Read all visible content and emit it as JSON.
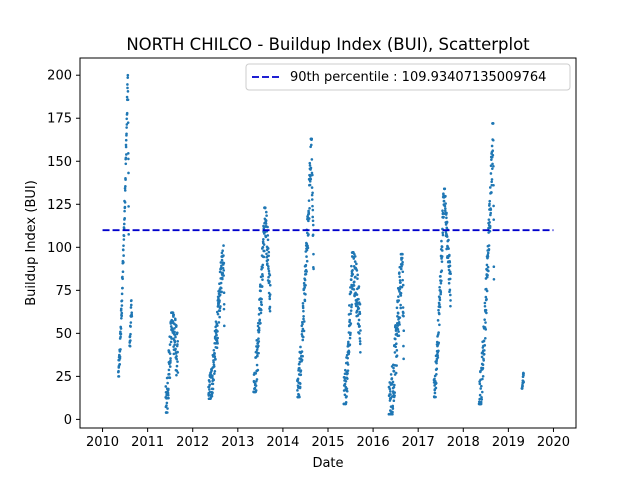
{
  "chart_data": {
    "type": "scatter",
    "title": "NORTH CHILCO - Buildup Index (BUI), Scatterplot",
    "xlabel": "Date",
    "ylabel": "Buildup Index (BUI)",
    "xlim": [
      2009.5,
      2020.5
    ],
    "ylim": [
      -5,
      210
    ],
    "x_ticks": [
      2010,
      2011,
      2012,
      2013,
      2014,
      2015,
      2016,
      2017,
      2018,
      2019,
      2020
    ],
    "x_tick_labels": [
      "2010",
      "2011",
      "2012",
      "2013",
      "2014",
      "2015",
      "2016",
      "2017",
      "2018",
      "2019",
      "2020"
    ],
    "y_ticks": [
      0,
      25,
      50,
      75,
      100,
      125,
      150,
      175,
      200
    ],
    "y_tick_labels": [
      "0",
      "25",
      "50",
      "75",
      "100",
      "125",
      "150",
      "175",
      "200"
    ],
    "grid": false,
    "legend_position": "top-right",
    "point_color": "#1f77b4",
    "reference_line": {
      "label": "90th percentile : 109.93407135009764",
      "value": 109.93407135009764,
      "x_range": [
        2010.0,
        2020.0
      ],
      "color": "#0000cc",
      "style": "dashed"
    },
    "series": [
      {
        "seasons": [
          {
            "x_start": 2010.35,
            "x_end": 2010.58,
            "y_start": 25,
            "y_peak": 200,
            "peak_at": 0.92,
            "spread": 8
          },
          {
            "x_start": 2010.6,
            "x_end": 2010.65,
            "y_start": 42,
            "y_peak": 70,
            "peak_at": 0.8,
            "spread": 6
          },
          {
            "x_start": 2011.4,
            "x_end": 2011.67,
            "y_start": 4,
            "y_peak": 62,
            "peak_at": 0.5,
            "spread": 15
          },
          {
            "x_start": 2012.35,
            "x_end": 2012.7,
            "y_start": 12,
            "y_peak": 101,
            "peak_at": 0.95,
            "spread": 12
          },
          {
            "x_start": 2013.35,
            "x_end": 2013.72,
            "y_start": 16,
            "y_peak": 123,
            "peak_at": 0.7,
            "spread": 14
          },
          {
            "x_start": 2014.32,
            "x_end": 2014.68,
            "y_start": 13,
            "y_peak": 163,
            "peak_at": 0.88,
            "spread": 14
          },
          {
            "x_start": 2015.35,
            "x_end": 2015.72,
            "y_start": 9,
            "y_peak": 97,
            "peak_at": 0.55,
            "spread": 16
          },
          {
            "x_start": 2016.35,
            "x_end": 2016.68,
            "y_start": 3,
            "y_peak": 96,
            "peak_at": 0.9,
            "spread": 18
          },
          {
            "x_start": 2017.35,
            "x_end": 2017.72,
            "y_start": 13,
            "y_peak": 134,
            "peak_at": 0.6,
            "spread": 12
          },
          {
            "x_start": 2018.35,
            "x_end": 2018.68,
            "y_start": 9,
            "y_peak": 172,
            "peak_at": 0.95,
            "spread": 14
          },
          {
            "x_start": 2019.3,
            "x_end": 2019.34,
            "y_start": 18,
            "y_peak": 27,
            "peak_at": 0.9,
            "spread": 2
          }
        ]
      }
    ]
  }
}
